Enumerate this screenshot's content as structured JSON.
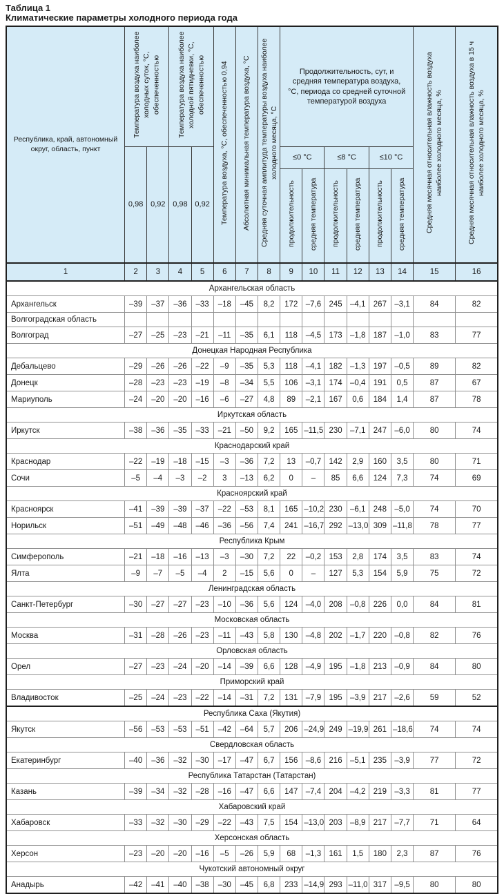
{
  "page": {
    "title": "Таблица 1",
    "subtitle": "Климатические параметры холодного периода года"
  },
  "colors": {
    "header_bg": "#d5ebf7",
    "border_dark": "#1f1f1f",
    "border_gray": "#8f8f8f",
    "header_line": "#3a3a3a",
    "text": "#1a1a1a"
  },
  "table": {
    "header": {
      "col1": "Республика, край, автономный округ, область, пункт",
      "group_cold_days": "Температура воздуха наиболее холодных суток, °С, обеспеченностью",
      "group_cold_five_days": "Температура воздуха наиболее холодной пяти­дневки, °С, обеспеченностью",
      "prob_098": "0,98",
      "prob_092": "0,92",
      "col6": "Температура воздуха, °С, обеспеченностью 0,94",
      "col7": "Абсолютная минимальная температура воздуха, °С",
      "col8": "Средняя суточная амплитуда температуры воздуха наиболее холодного месяца, °С",
      "group_duration": "Продолжительность, сут, и средняя температура воздуха, °С, периода со средней суточной температурой воздуха",
      "le0": "≤0 °С",
      "le8": "≤8 °С",
      "le10": "≤10 °С",
      "duration": "продолжительность",
      "avg_temp": "средняя температура",
      "col15": "Средняя месячная относительная влажность воздуха наиболее холодного месяца, %",
      "col16": "Средняя месячная относительная влажность воздуха в 15 ч наиболее холодного месяца, %"
    },
    "column_numbers": [
      "1",
      "2",
      "3",
      "4",
      "5",
      "6",
      "7",
      "8",
      "9",
      "10",
      "11",
      "12",
      "13",
      "14",
      "15",
      "16"
    ],
    "sections": [
      {
        "region": "Архангельская область",
        "style": "merged",
        "rows": [
          {
            "name": "Архангельск",
            "values": [
              "–39",
              "–37",
              "–36",
              "–33",
              "–18",
              "–45",
              "8,2",
              "172",
              "–7,6",
              "245",
              "–4,1",
              "267",
              "–3,1",
              "84",
              "82"
            ]
          }
        ]
      },
      {
        "region": "Волгоградская область",
        "style": "first-column",
        "rows": [
          {
            "name": "Волгоград",
            "values": [
              "–27",
              "–25",
              "–23",
              "–21",
              "–11",
              "–35",
              "6,1",
              "118",
              "–4,5",
              "173",
              "–1,8",
              "187",
              "–1,0",
              "83",
              "77"
            ]
          }
        ]
      },
      {
        "region": "Донецкая Народная Республика",
        "style": "merged",
        "rows": [
          {
            "name": "Дебальцево",
            "values": [
              "–29",
              "–26",
              "–26",
              "–22",
              "–9",
              "–35",
              "5,3",
              "118",
              "–4,1",
              "182",
              "–1,3",
              "197",
              "–0,5",
              "89",
              "82"
            ]
          },
          {
            "name": "Донецк",
            "values": [
              "–28",
              "–23",
              "–23",
              "–19",
              "–8",
              "–34",
              "5,5",
              "106",
              "–3,1",
              "174",
              "–0,4",
              "191",
              "0,5",
              "87",
              "67"
            ]
          },
          {
            "name": "Мариуполь",
            "values": [
              "–24",
              "–20",
              "–20",
              "–16",
              "–6",
              "–27",
              "4,8",
              "89",
              "–2,1",
              "167",
              "0,6",
              "184",
              "1,4",
              "87",
              "78"
            ]
          }
        ]
      },
      {
        "region": "Иркутская область",
        "style": "merged",
        "rows": [
          {
            "name": "Иркутск",
            "values": [
              "–38",
              "–36",
              "–35",
              "–33",
              "–21",
              "–50",
              "9,2",
              "165",
              "–11,5",
              "230",
              "–7,1",
              "247",
              "–6,0",
              "80",
              "74"
            ]
          }
        ]
      },
      {
        "region": "Краснодарский край",
        "style": "merged",
        "rows": [
          {
            "name": "Краснодар",
            "values": [
              "–22",
              "–19",
              "–18",
              "–15",
              "–3",
              "–36",
              "7,2",
              "13",
              "–0,7",
              "142",
              "2,9",
              "160",
              "3,5",
              "80",
              "71"
            ]
          },
          {
            "name": "Сочи",
            "values": [
              "–5",
              "–4",
              "–3",
              "–2",
              "3",
              "–13",
              "6,2",
              "0",
              "–",
              "85",
              "6,6",
              "124",
              "7,3",
              "74",
              "69"
            ]
          }
        ]
      },
      {
        "region": "Красноярский край",
        "style": "merged",
        "rows": [
          {
            "name": "Красноярск",
            "values": [
              "–41",
              "–39",
              "–39",
              "–37",
              "–22",
              "–53",
              "8,1",
              "165",
              "–10,2",
              "230",
              "–6,1",
              "248",
              "–5,0",
              "74",
              "70"
            ]
          },
          {
            "name": "Норильск",
            "values": [
              "–51",
              "–49",
              "–48",
              "–46",
              "–36",
              "–56",
              "7,4",
              "241",
              "–16,7",
              "292",
              "–13,0",
              "309",
              "–11,8",
              "78",
              "77"
            ]
          }
        ]
      },
      {
        "region": "Республика Крым",
        "style": "merged",
        "rows": [
          {
            "name": "Симферополь",
            "values": [
              "–21",
              "–18",
              "–16",
              "–13",
              "–3",
              "–30",
              "7,2",
              "22",
              "–0,2",
              "153",
              "2,8",
              "174",
              "3,5",
              "83",
              "74"
            ]
          },
          {
            "name": "Ялта",
            "values": [
              "–9",
              "–7",
              "–5",
              "–4",
              "2",
              "–15",
              "5,6",
              "0",
              "–",
              "127",
              "5,3",
              "154",
              "5,9",
              "75",
              "72"
            ]
          }
        ]
      },
      {
        "region": "Ленинградская область",
        "style": "merged",
        "rows": [
          {
            "name": "Санкт-Петербург",
            "values": [
              "–30",
              "–27",
              "–27",
              "–23",
              "–10",
              "–36",
              "5,6",
              "124",
              "–4,0",
              "208",
              "–0,8",
              "226",
              "0,0",
              "84",
              "81"
            ]
          }
        ]
      },
      {
        "region": "Московская область",
        "style": "merged",
        "rows": [
          {
            "name": "Москва",
            "values": [
              "–31",
              "–28",
              "–26",
              "–23",
              "–11",
              "–43",
              "5,8",
              "130",
              "–4,8",
              "202",
              "–1,7",
              "220",
              "–0,8",
              "82",
              "76"
            ]
          }
        ]
      },
      {
        "region": "Орловская область",
        "style": "merged",
        "rows": [
          {
            "name": "Орел",
            "values": [
              "–27",
              "–23",
              "–24",
              "–20",
              "–14",
              "–39",
              "6,6",
              "128",
              "–4,9",
              "195",
              "–1,8",
              "213",
              "–0,9",
              "84",
              "80"
            ]
          }
        ]
      },
      {
        "region": "Приморский край",
        "style": "merged",
        "rows": [
          {
            "name": "Владивосток",
            "values": [
              "–25",
              "–24",
              "–23",
              "–22",
              "–14",
              "–31",
              "7,2",
              "131",
              "–7,9",
              "195",
              "–3,9",
              "217",
              "–2,6",
              "59",
              "52"
            ]
          }
        ]
      },
      {
        "region": "Республика Саха (Якутия)",
        "style": "merged",
        "thick_top": true,
        "rows": [
          {
            "name": "Якутск",
            "values": [
              "–56",
              "–53",
              "–53",
              "–51",
              "–42",
              "–64",
              "5,7",
              "206",
              "–24,9",
              "249",
              "–19,9",
              "261",
              "–18,6",
              "74",
              "74"
            ]
          }
        ]
      },
      {
        "region": "Свердловская область",
        "style": "merged",
        "rows": [
          {
            "name": "Екатеринбург",
            "values": [
              "–40",
              "–36",
              "–32",
              "–30",
              "–17",
              "–47",
              "6,7",
              "156",
              "–8,6",
              "216",
              "–5,1",
              "235",
              "–3,9",
              "77",
              "72"
            ]
          }
        ]
      },
      {
        "region": "Республика Татарстан (Татарстан)",
        "style": "merged",
        "rows": [
          {
            "name": "Казань",
            "values": [
              "–39",
              "–34",
              "–32",
              "–28",
              "–16",
              "–47",
              "6,6",
              "147",
              "–7,4",
              "204",
              "–4,2",
              "219",
              "–3,3",
              "81",
              "77"
            ]
          }
        ]
      },
      {
        "region": "Хабаровский край",
        "style": "merged",
        "rows": [
          {
            "name": "Хабаровск",
            "values": [
              "–33",
              "–32",
              "–30",
              "–29",
              "–22",
              "–43",
              "7,5",
              "154",
              "–13,0",
              "203",
              "–8,9",
              "217",
              "–7,7",
              "71",
              "64"
            ]
          }
        ]
      },
      {
        "region": "Херсонская область",
        "style": "merged",
        "rows": [
          {
            "name": "Херсон",
            "values": [
              "–23",
              "–20",
              "–20",
              "–16",
              "–5",
              "–26",
              "5,9",
              "68",
              "–1,3",
              "161",
              "1,5",
              "180",
              "2,3",
              "87",
              "76"
            ]
          }
        ]
      },
      {
        "region": "Чукотский автономный округ",
        "style": "merged",
        "rows": [
          {
            "name": "Анадырь",
            "values": [
              "–42",
              "–41",
              "–40",
              "–38",
              "–30",
              "–45",
              "6,8",
              "233",
              "–14,9",
              "293",
              "–11,0",
              "317",
              "–9,5",
              "80",
              "80"
            ]
          }
        ]
      }
    ]
  }
}
